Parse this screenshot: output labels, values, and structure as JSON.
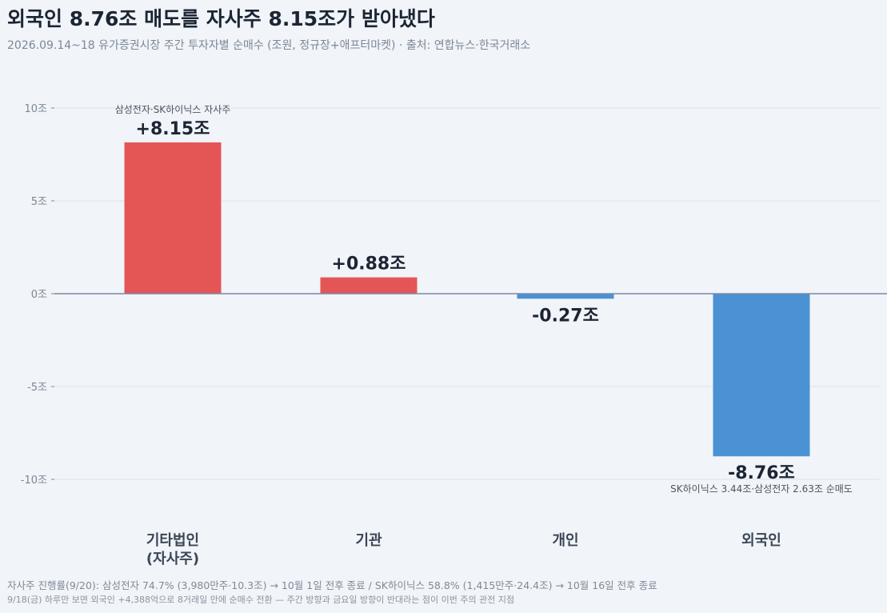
{
  "header": {
    "title": "외국인 8.76조 매도를 자사주 8.15조가 받아냈다",
    "subtitle": "2026.09.14~18 유가증권시장 주간 투자자별 순매수 (조원, 정규장+애프터마켓)  ·  출처: 연합뉴스·한국거래소"
  },
  "chart_data": {
    "type": "bar",
    "categories": [
      "기타법인\n(자사주)",
      "기관",
      "개인",
      "외국인"
    ],
    "values": [
      8.15,
      0.88,
      -0.27,
      -8.76
    ],
    "value_labels": [
      "+8.15조",
      "+0.88조",
      "-0.27조",
      "-8.76조"
    ],
    "annotations": [
      "삼성전자·SK하이닉스 자사주",
      "",
      "",
      "SK하이닉스 3.44조·삼성전자 2.63조 순매도"
    ],
    "yticks": [
      10,
      5,
      0,
      -5,
      -10
    ],
    "ytick_labels": [
      "10조",
      "5조",
      "0조",
      "-5조",
      "-10조"
    ],
    "ylim": [
      -11.3,
      11
    ],
    "grid": true,
    "colors": {
      "positive": "#e45656",
      "negative": "#4a92d4",
      "zero_line": "#7a8aa8",
      "grid": "#dde3ea"
    }
  },
  "footer": {
    "note1": "자사주 진행률(9/20): 삼성전자 74.7% (3,980만주·10.3조) → 10월 1일 전후 종료 / SK하이닉스 58.8% (1,415만주·24.4조) → 10월 16일 전후 종료",
    "note2": "9/18(금) 하루만 보면 외국인 +4,388억으로 8거래일 만에 순매수 전환 — 주간 방향과 금요일 방향이 반대라는 점이 이번 주의 관전 지점"
  }
}
